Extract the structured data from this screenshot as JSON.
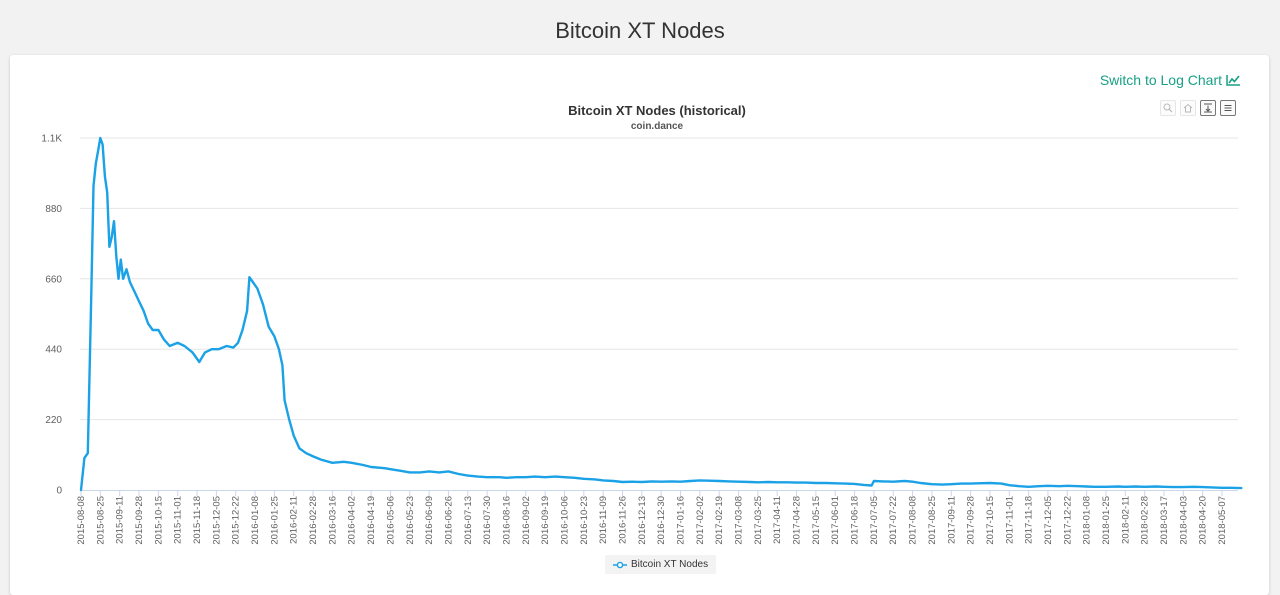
{
  "page": {
    "title": "Bitcoin XT Nodes"
  },
  "toolbar": {
    "log_link_label": "Switch to Log Chart"
  },
  "chart_data": {
    "type": "line",
    "title": "Bitcoin XT Nodes (historical)",
    "subtitle": "coin.dance",
    "xlabel": "",
    "ylabel": "",
    "ylim": [
      0,
      1100
    ],
    "y_ticks": [
      {
        "value": 0,
        "label": "0"
      },
      {
        "value": 220,
        "label": "220"
      },
      {
        "value": 440,
        "label": "440"
      },
      {
        "value": 660,
        "label": "660"
      },
      {
        "value": 880,
        "label": "880"
      },
      {
        "value": 1100,
        "label": "1.1K"
      }
    ],
    "x_ticks": [
      "2015-08-08",
      "2015-08-25",
      "2015-09-11",
      "2015-09-28",
      "2015-10-15",
      "2015-11-01",
      "2015-11-18",
      "2015-12-05",
      "2015-12-22",
      "2016-01-08",
      "2016-01-25",
      "2016-02-11",
      "2016-02-28",
      "2016-03-16",
      "2016-04-02",
      "2016-04-19",
      "2016-05-06",
      "2016-05-23",
      "2016-06-09",
      "2016-06-26",
      "2016-07-13",
      "2016-07-30",
      "2016-08-16",
      "2016-09-02",
      "2016-09-19",
      "2016-10-06",
      "2016-10-23",
      "2016-11-09",
      "2016-11-26",
      "2016-12-13",
      "2016-12-30",
      "2017-01-16",
      "2017-02-02",
      "2017-02-19",
      "2017-03-08",
      "2017-03-25",
      "2017-04-11",
      "2017-04-28",
      "2017-05-15",
      "2017-06-01",
      "2017-06-18",
      "2017-07-05",
      "2017-07-22",
      "2017-08-08",
      "2017-08-25",
      "2017-09-11",
      "2017-09-28",
      "2017-10-15",
      "2017-11-01",
      "2017-11-18",
      "2017-12-05",
      "2017-12-22",
      "2018-01-08",
      "2018-01-25",
      "2018-02-11",
      "2018-02-28",
      "2018-03-17",
      "2018-04-03",
      "2018-04-20",
      "2018-05-07"
    ],
    "grid": true,
    "legend_position": "bottom-center",
    "series": [
      {
        "name": "Bitcoin XT Nodes",
        "color": "#1aa1e6",
        "points": [
          [
            "2015-08-08",
            0
          ],
          [
            "2015-08-11",
            100
          ],
          [
            "2015-08-14",
            115
          ],
          [
            "2015-08-17",
            600
          ],
          [
            "2015-08-19",
            950
          ],
          [
            "2015-08-21",
            1020
          ],
          [
            "2015-08-23",
            1060
          ],
          [
            "2015-08-25",
            1100
          ],
          [
            "2015-08-27",
            1080
          ],
          [
            "2015-08-29",
            980
          ],
          [
            "2015-08-31",
            930
          ],
          [
            "2015-09-02",
            760
          ],
          [
            "2015-09-04",
            790
          ],
          [
            "2015-09-06",
            840
          ],
          [
            "2015-09-08",
            730
          ],
          [
            "2015-09-10",
            660
          ],
          [
            "2015-09-12",
            720
          ],
          [
            "2015-09-14",
            660
          ],
          [
            "2015-09-17",
            690
          ],
          [
            "2015-09-20",
            650
          ],
          [
            "2015-09-24",
            620
          ],
          [
            "2015-09-28",
            590
          ],
          [
            "2015-10-02",
            560
          ],
          [
            "2015-10-06",
            520
          ],
          [
            "2015-10-10",
            500
          ],
          [
            "2015-10-15",
            500
          ],
          [
            "2015-10-20",
            470
          ],
          [
            "2015-10-25",
            450
          ],
          [
            "2015-11-01",
            460
          ],
          [
            "2015-11-07",
            450
          ],
          [
            "2015-11-14",
            430
          ],
          [
            "2015-11-20",
            400
          ],
          [
            "2015-11-25",
            430
          ],
          [
            "2015-12-01",
            440
          ],
          [
            "2015-12-07",
            440
          ],
          [
            "2015-12-14",
            450
          ],
          [
            "2015-12-20",
            445
          ],
          [
            "2015-12-24",
            460
          ],
          [
            "2015-12-28",
            500
          ],
          [
            "2016-01-01",
            560
          ],
          [
            "2016-01-03",
            665
          ],
          [
            "2016-01-06",
            650
          ],
          [
            "2016-01-10",
            630
          ],
          [
            "2016-01-15",
            580
          ],
          [
            "2016-01-20",
            510
          ],
          [
            "2016-01-25",
            480
          ],
          [
            "2016-01-29",
            440
          ],
          [
            "2016-02-01",
            390
          ],
          [
            "2016-02-03",
            280
          ],
          [
            "2016-02-07",
            220
          ],
          [
            "2016-02-11",
            170
          ],
          [
            "2016-02-16",
            130
          ],
          [
            "2016-02-22",
            115
          ],
          [
            "2016-02-28",
            105
          ],
          [
            "2016-03-06",
            95
          ],
          [
            "2016-03-16",
            85
          ],
          [
            "2016-03-26",
            88
          ],
          [
            "2016-04-02",
            85
          ],
          [
            "2016-04-12",
            78
          ],
          [
            "2016-04-19",
            72
          ],
          [
            "2016-05-01",
            68
          ],
          [
            "2016-05-06",
            65
          ],
          [
            "2016-05-15",
            60
          ],
          [
            "2016-05-23",
            55
          ],
          [
            "2016-06-01",
            55
          ],
          [
            "2016-06-09",
            58
          ],
          [
            "2016-06-18",
            55
          ],
          [
            "2016-06-26",
            58
          ],
          [
            "2016-07-05",
            50
          ],
          [
            "2016-07-13",
            45
          ],
          [
            "2016-07-22",
            42
          ],
          [
            "2016-07-30",
            40
          ],
          [
            "2016-08-10",
            40
          ],
          [
            "2016-08-16",
            38
          ],
          [
            "2016-08-25",
            40
          ],
          [
            "2016-09-02",
            40
          ],
          [
            "2016-09-10",
            42
          ],
          [
            "2016-09-19",
            40
          ],
          [
            "2016-09-28",
            42
          ],
          [
            "2016-10-06",
            40
          ],
          [
            "2016-10-15",
            38
          ],
          [
            "2016-10-23",
            35
          ],
          [
            "2016-11-02",
            33
          ],
          [
            "2016-11-09",
            30
          ],
          [
            "2016-11-18",
            28
          ],
          [
            "2016-11-26",
            25
          ],
          [
            "2016-12-05",
            26
          ],
          [
            "2016-12-13",
            25
          ],
          [
            "2016-12-22",
            27
          ],
          [
            "2016-12-30",
            26
          ],
          [
            "2017-01-08",
            27
          ],
          [
            "2017-01-16",
            26
          ],
          [
            "2017-01-25",
            28
          ],
          [
            "2017-02-02",
            30
          ],
          [
            "2017-02-10",
            29
          ],
          [
            "2017-02-19",
            28
          ],
          [
            "2017-02-28",
            27
          ],
          [
            "2017-03-08",
            26
          ],
          [
            "2017-03-18",
            25
          ],
          [
            "2017-03-25",
            24
          ],
          [
            "2017-04-03",
            25
          ],
          [
            "2017-04-11",
            24
          ],
          [
            "2017-04-20",
            24
          ],
          [
            "2017-04-28",
            23
          ],
          [
            "2017-05-06",
            23
          ],
          [
            "2017-05-15",
            22
          ],
          [
            "2017-05-24",
            22
          ],
          [
            "2017-06-01",
            21
          ],
          [
            "2017-06-10",
            20
          ],
          [
            "2017-06-18",
            19
          ],
          [
            "2017-06-26",
            16
          ],
          [
            "2017-07-03",
            14
          ],
          [
            "2017-07-05",
            28
          ],
          [
            "2017-07-13",
            27
          ],
          [
            "2017-07-22",
            26
          ],
          [
            "2017-08-01",
            28
          ],
          [
            "2017-08-08",
            26
          ],
          [
            "2017-08-15",
            22
          ],
          [
            "2017-08-25",
            18
          ],
          [
            "2017-09-03",
            17
          ],
          [
            "2017-09-11",
            18
          ],
          [
            "2017-09-20",
            20
          ],
          [
            "2017-09-28",
            20
          ],
          [
            "2017-10-05",
            21
          ],
          [
            "2017-10-15",
            22
          ],
          [
            "2017-10-25",
            20
          ],
          [
            "2017-11-01",
            15
          ],
          [
            "2017-11-10",
            12
          ],
          [
            "2017-11-18",
            10
          ],
          [
            "2017-11-27",
            12
          ],
          [
            "2017-12-05",
            13
          ],
          [
            "2017-12-15",
            12
          ],
          [
            "2017-12-22",
            13
          ],
          [
            "2018-01-01",
            12
          ],
          [
            "2018-01-08",
            11
          ],
          [
            "2018-01-15",
            10
          ],
          [
            "2018-01-25",
            10
          ],
          [
            "2018-02-05",
            11
          ],
          [
            "2018-02-11",
            10
          ],
          [
            "2018-02-20",
            11
          ],
          [
            "2018-02-28",
            10
          ],
          [
            "2018-03-10",
            11
          ],
          [
            "2018-03-17",
            10
          ],
          [
            "2018-03-25",
            9
          ],
          [
            "2018-04-03",
            9
          ],
          [
            "2018-04-12",
            10
          ],
          [
            "2018-04-20",
            9
          ],
          [
            "2018-04-28",
            8
          ],
          [
            "2018-05-07",
            7
          ],
          [
            "2018-05-15",
            7
          ],
          [
            "2018-05-24",
            6
          ]
        ]
      }
    ]
  }
}
